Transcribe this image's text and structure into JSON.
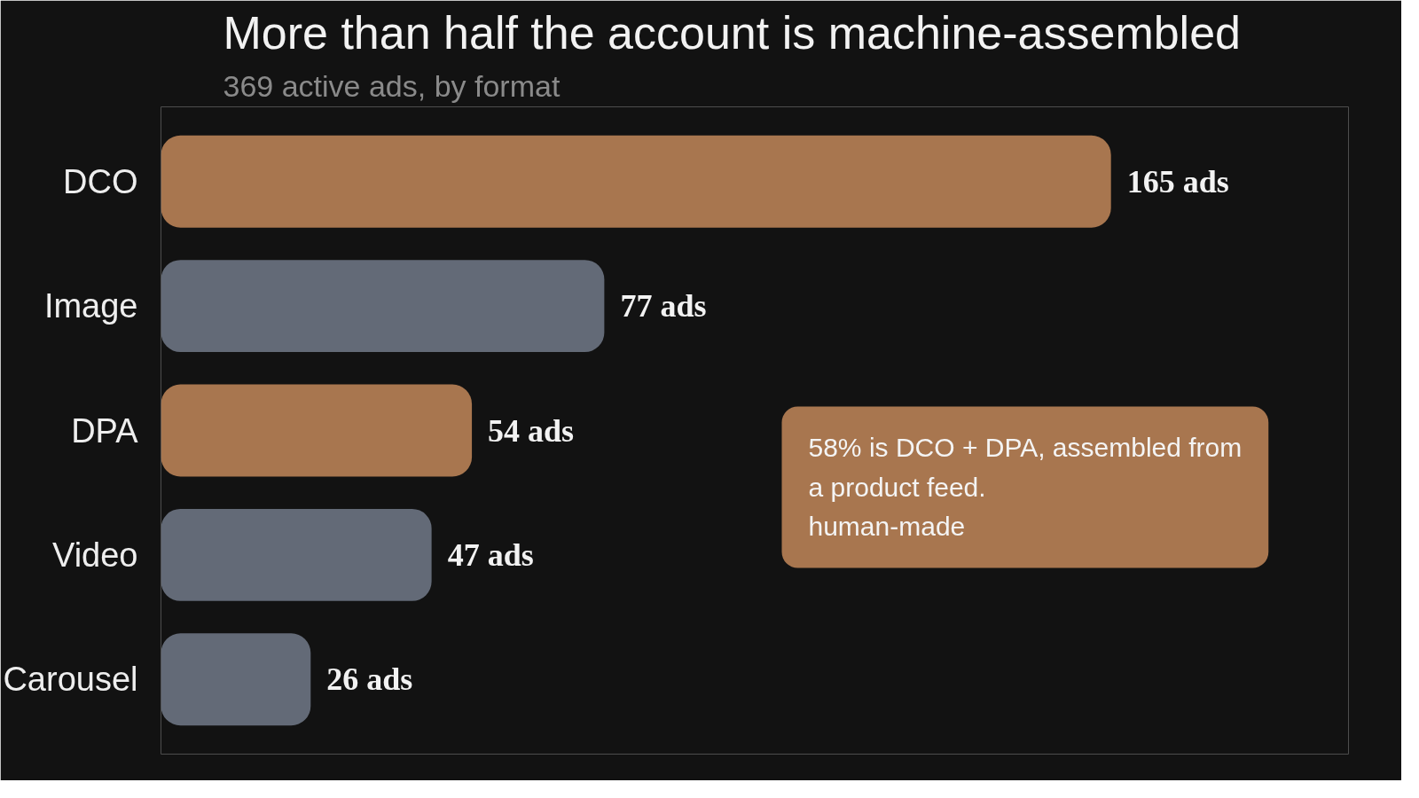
{
  "chart_data": {
    "type": "bar",
    "orientation": "horizontal",
    "title": "More than half the account is machine-assembled",
    "subtitle": "369 active ads, by format",
    "categories": [
      "DCO",
      "Image",
      "DPA",
      "Video",
      "Carousel"
    ],
    "values": [
      165,
      77,
      54,
      47,
      26
    ],
    "colors": [
      "#a8764f",
      "#636a77",
      "#a8764f",
      "#636a77",
      "#636a77"
    ],
    "value_labels": [
      "165 ads",
      "77 ads",
      "54 ads",
      "47 ads",
      "26 ads"
    ],
    "annotations": [
      "58% is DCO + DPA, assembled from\na product feed.\nhuman-made"
    ],
    "grid": false
  }
}
